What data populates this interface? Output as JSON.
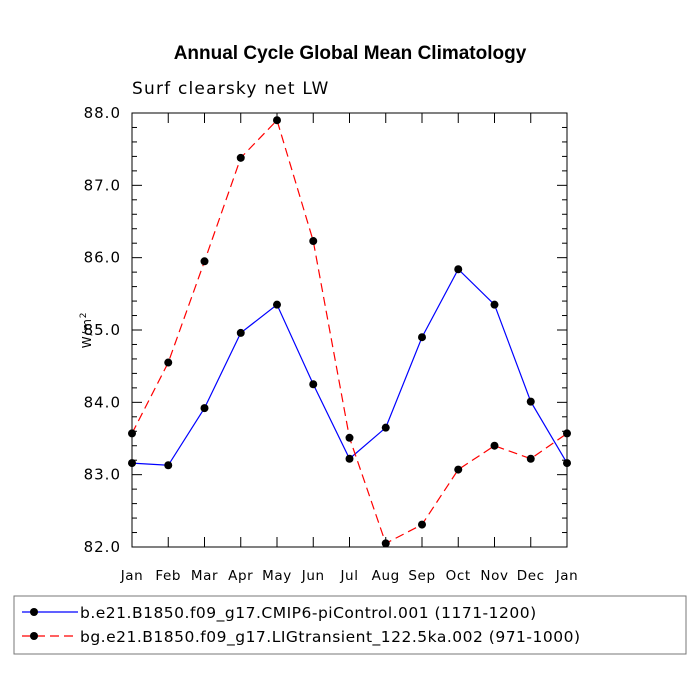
{
  "chart_data": {
    "type": "line",
    "title": "Annual Cycle Global Mean Climatology",
    "subtitle": "Surf clearsky net LW",
    "ylabel_base": "W/m",
    "ylabel_sup": "2",
    "categories": [
      "Jan",
      "Feb",
      "Mar",
      "Apr",
      "May",
      "Jun",
      "Jul",
      "Aug",
      "Sep",
      "Oct",
      "Nov",
      "Dec",
      "Jan"
    ],
    "ylim": [
      82.0,
      88.0
    ],
    "yticks": [
      "82.0",
      "83.0",
      "84.0",
      "85.0",
      "86.0",
      "87.0",
      "88.0"
    ],
    "series": [
      {
        "name": "b.e21.B1850.f09_g17.CMIP6-piControl.001 (1171-1200)",
        "color": "#0000ff",
        "dash": "solid",
        "values": [
          83.16,
          83.13,
          83.92,
          84.96,
          85.35,
          84.25,
          83.22,
          83.65,
          84.9,
          85.84,
          85.35,
          84.01,
          83.16
        ]
      },
      {
        "name": "bg.e21.B1850.f09_g17.LIGtransient_122.5ka.002 (971-1000)",
        "color": "#ff0000",
        "dash": "dashed",
        "values": [
          83.57,
          84.55,
          85.95,
          87.38,
          87.9,
          86.23,
          83.51,
          82.05,
          82.31,
          83.07,
          83.4,
          83.22,
          83.57
        ]
      }
    ],
    "legend_position": "bottom",
    "grid": false
  }
}
